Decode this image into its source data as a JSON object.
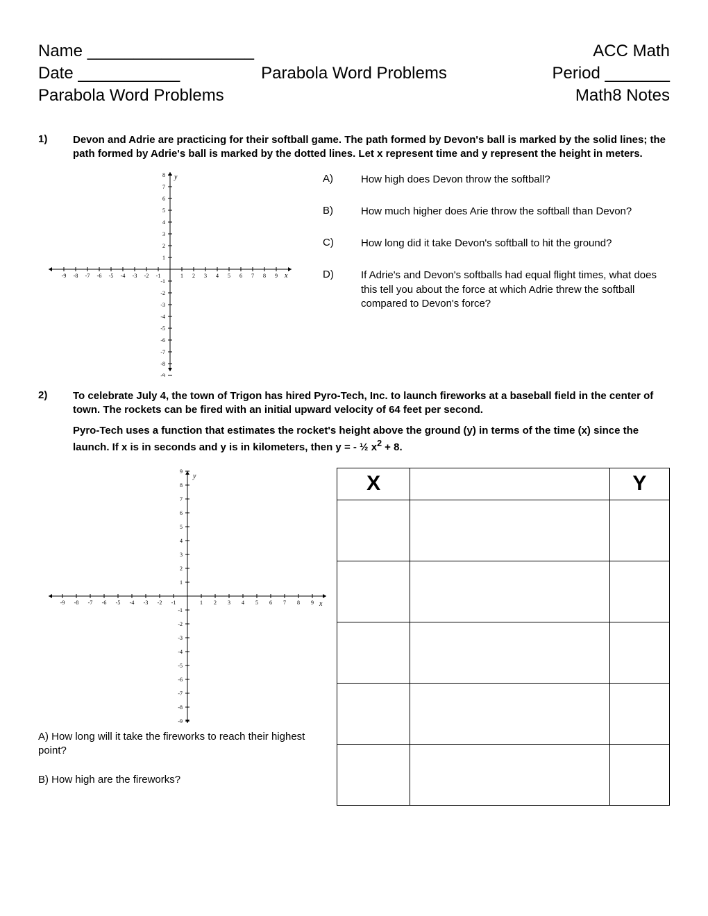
{
  "header": {
    "name_label": "Name __________________",
    "course": "ACC Math",
    "date_label": "Date ___________",
    "title_center": "Parabola Word Problems",
    "period_label": "Period _______",
    "title_left": "Parabola Word Problems",
    "notes_label": "Math8 Notes"
  },
  "problem1": {
    "number": "1)",
    "body": "Devon and Adrie are practicing for their softball game.  The path formed by Devon's ball is marked by the solid lines; the path formed by Adrie's ball is marked by the dotted lines.  Let x represent time and y represent the height in meters.",
    "subs": [
      {
        "letter": "A)",
        "text": "How high does Devon throw the softball?"
      },
      {
        "letter": "B)",
        "text": "How much higher does Arie throw the softball than Devon?"
      },
      {
        "letter": "C)",
        "text": "How long did it take Devon's softball to hit the ground?"
      },
      {
        "letter": "D)",
        "text": "If Adrie's and Devon's softballs had equal flight times, what does this tell you about the force at which Adrie threw the softball compared to Devon's force?"
      }
    ]
  },
  "problem2": {
    "number": "2)",
    "body1": "To celebrate July 4, the town of Trigon has hired Pyro-Tech, Inc. to launch fireworks at a baseball field in the center of town.  The rockets can be fired with an initial upward velocity of 64 feet per second.",
    "body2_a": "Pyro-Tech uses a function that estimates the rocket's height above the ground (y) in terms of the time (x) since the launch.  If x is in seconds and y is in kilometers, then y = - ½ x",
    "body2_b": " + 8.",
    "subA": "A)  How long will it take the fireworks to reach their highest point?",
    "subB": "B)  How high are the fireworks?",
    "table": {
      "colX": "X",
      "colY": "Y",
      "rows": 5
    }
  },
  "graph": {
    "size": 380,
    "padding_x": 30,
    "range": 9,
    "axis_color": "#000000",
    "tick_font": 8
  }
}
